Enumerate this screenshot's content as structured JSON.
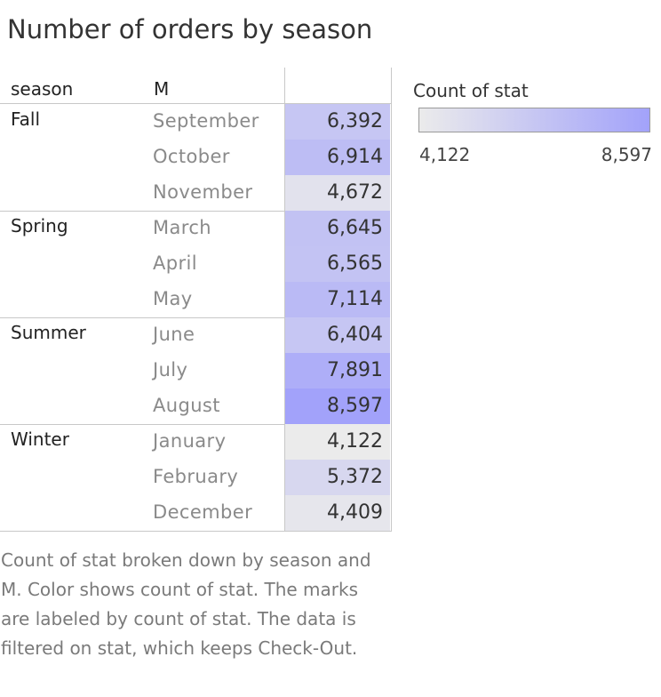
{
  "chart_data": {
    "type": "table",
    "title": "Number of orders by season",
    "columns": [
      "season",
      "M"
    ],
    "rows": [
      {
        "season": "Fall",
        "months": [
          {
            "m": "September",
            "value": 6392,
            "label": "6,392"
          },
          {
            "m": "October",
            "value": 6914,
            "label": "6,914"
          },
          {
            "m": "November",
            "value": 4672,
            "label": "4,672"
          }
        ]
      },
      {
        "season": "Spring",
        "months": [
          {
            "m": "March",
            "value": 6645,
            "label": "6,645"
          },
          {
            "m": "April",
            "value": 6565,
            "label": "6,565"
          },
          {
            "m": "May",
            "value": 7114,
            "label": "7,114"
          }
        ]
      },
      {
        "season": "Summer",
        "months": [
          {
            "m": "June",
            "value": 6404,
            "label": "6,404"
          },
          {
            "m": "July",
            "value": 7891,
            "label": "7,891"
          },
          {
            "m": "August",
            "value": 8597,
            "label": "8,597"
          }
        ]
      },
      {
        "season": "Winter",
        "months": [
          {
            "m": "January",
            "value": 4122,
            "label": "4,122"
          },
          {
            "m": "February",
            "value": 5372,
            "label": "5,372"
          },
          {
            "m": "December",
            "value": 4409,
            "label": "4,409"
          }
        ]
      }
    ],
    "color_legend": {
      "title": "Count of stat",
      "min": 4122,
      "max": 8597,
      "min_label": "4,122",
      "max_label": "8,597",
      "color_low": "#ebebeb",
      "color_high": "#a2a2fa"
    }
  },
  "caption": "Count of stat broken down by season and M.  Color shows count of stat.  The marks are labeled by count of stat. The data is filtered on stat, which keeps Check-Out."
}
